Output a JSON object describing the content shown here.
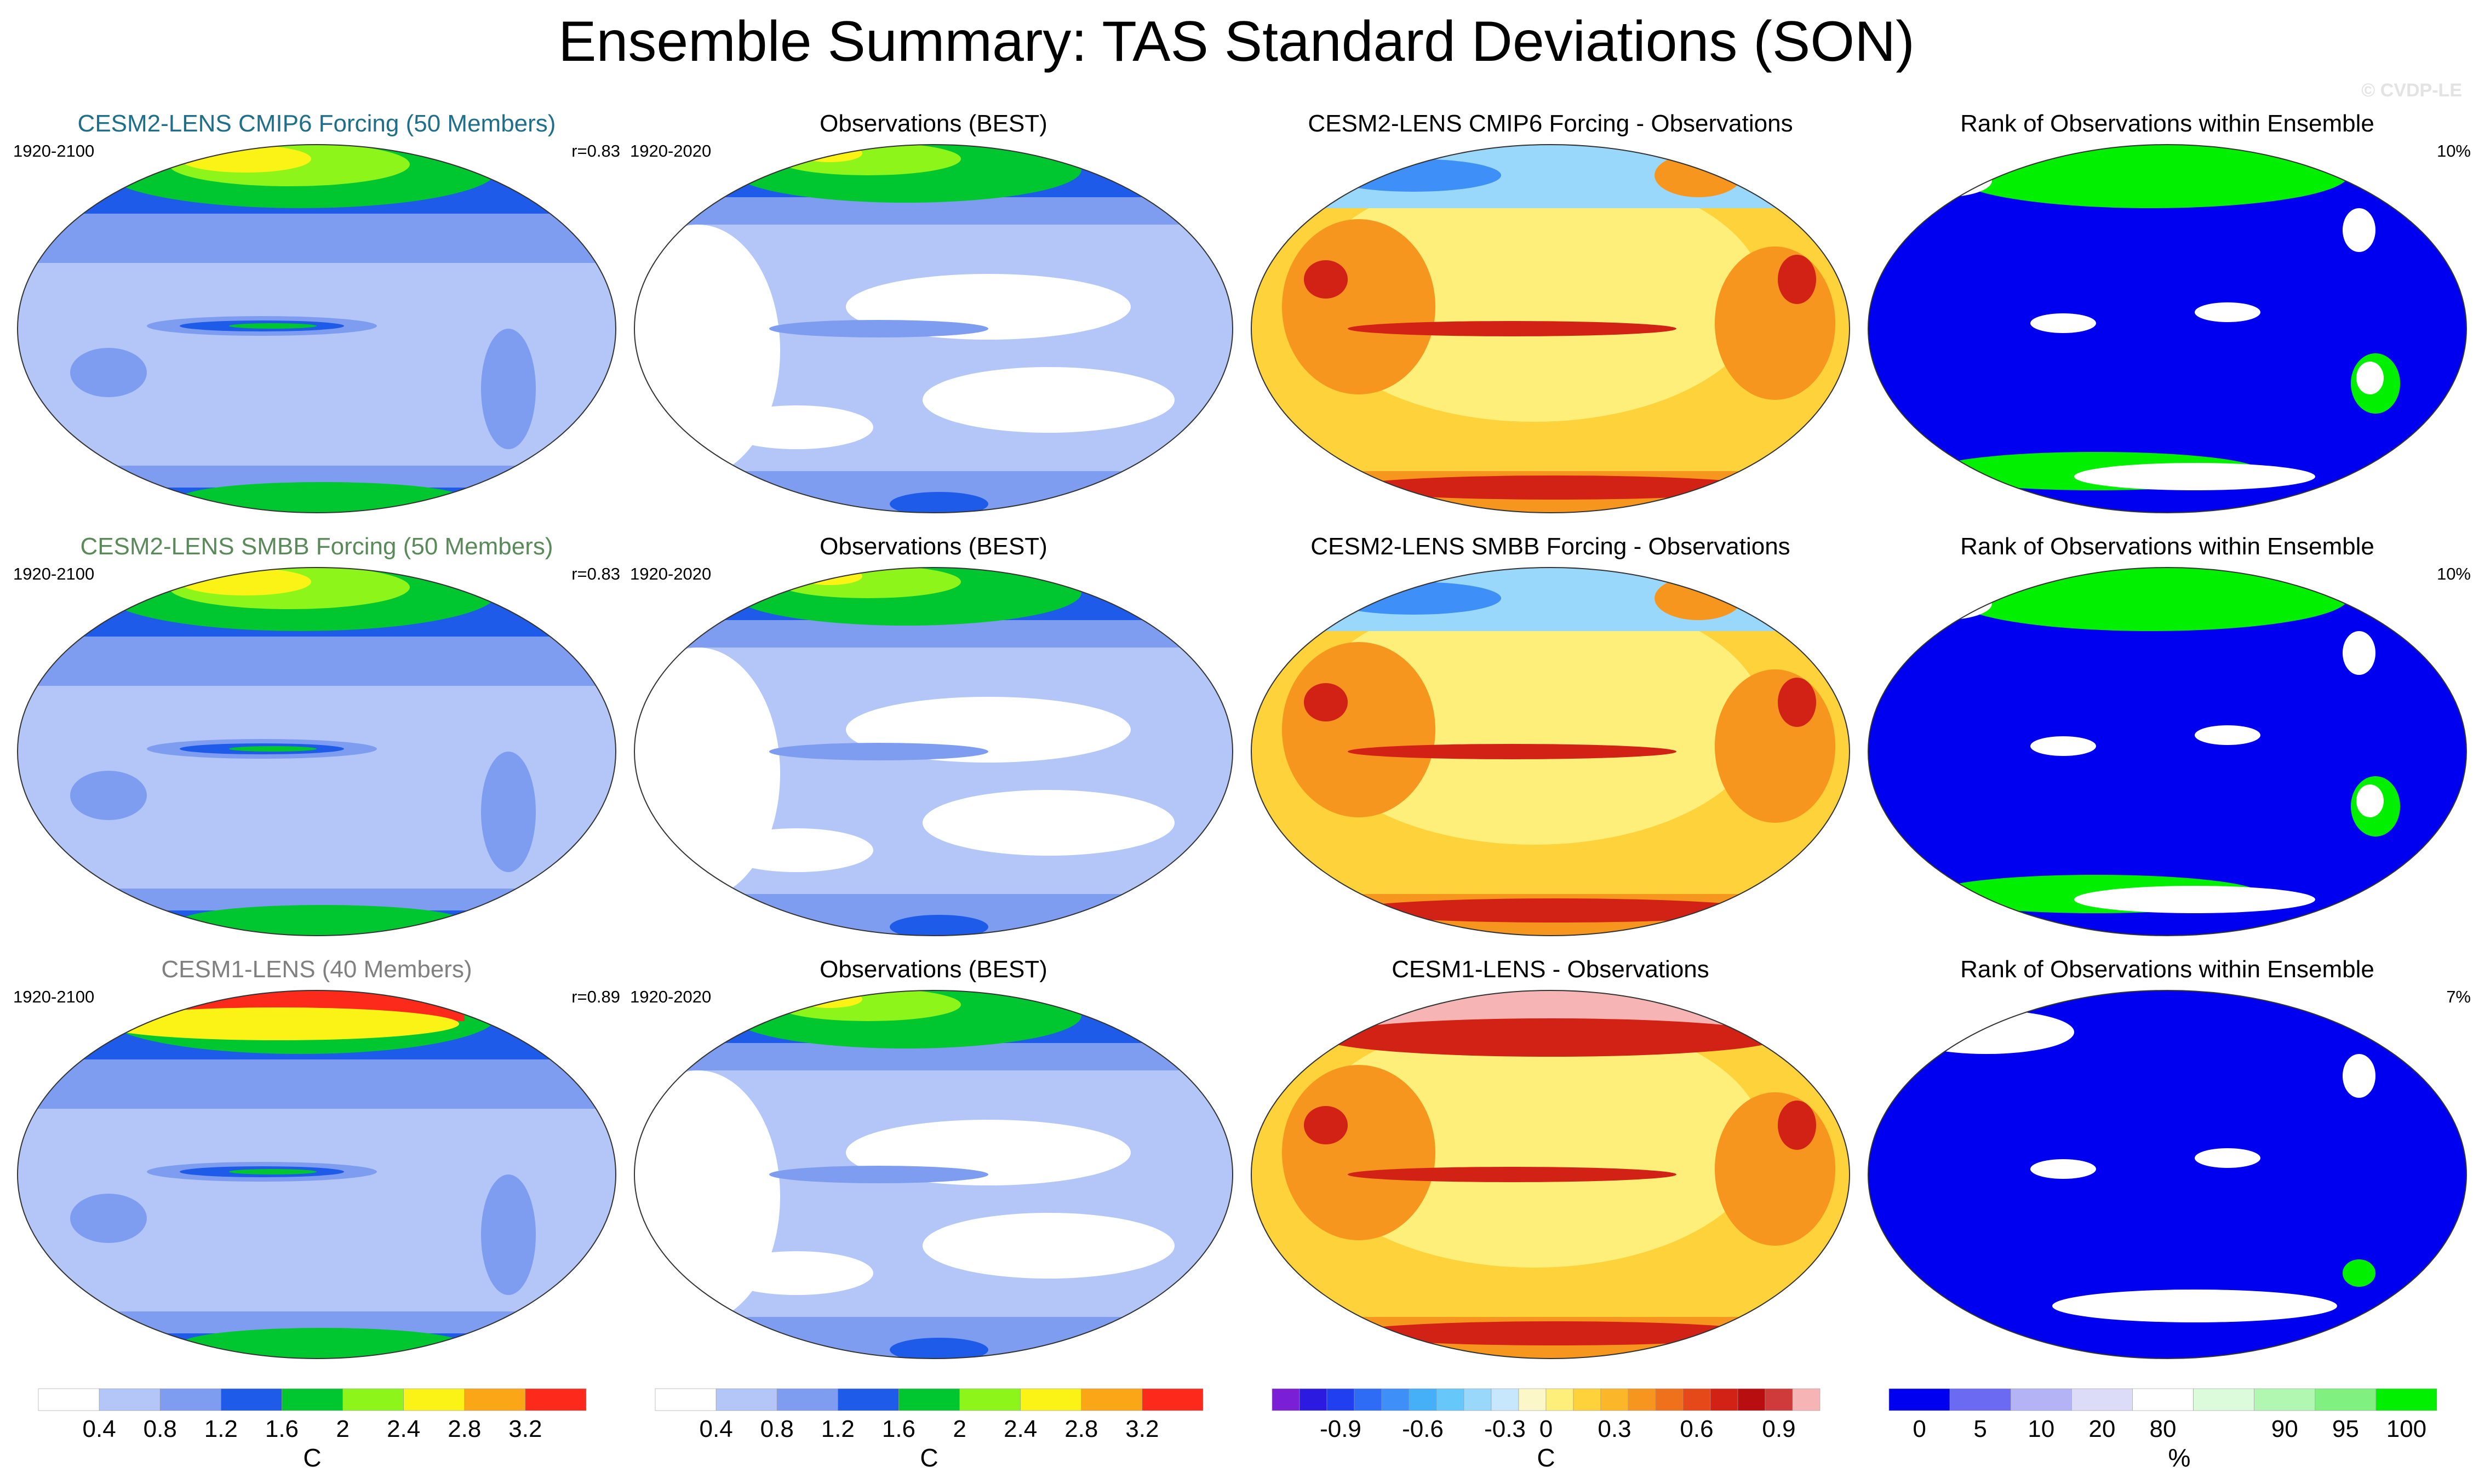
{
  "page_title": "Ensemble Summary: TAS Standard Deviations (SON)",
  "credit": "© CVDP-LE",
  "rows": [
    {
      "model": {
        "title": "CESM2-LENS CMIP6 Forcing (50 Members)",
        "title_color": "#1f6f8b",
        "period": "1920-2100",
        "corr": "r=0.83",
        "variant": 0
      },
      "obs": {
        "title": "Observations (BEST)",
        "period": "1920-2020"
      },
      "diff": {
        "title": "CESM2-LENS CMIP6 Forcing - Observations"
      },
      "rank": {
        "title": "Rank of Observations within Ensemble",
        "percent": "10%"
      }
    },
    {
      "model": {
        "title": "CESM2-LENS SMBB Forcing (50 Members)",
        "title_color": "#5a8a5a",
        "period": "1920-2100",
        "corr": "r=0.83",
        "variant": 1
      },
      "obs": {
        "title": "Observations (BEST)",
        "period": "1920-2020"
      },
      "diff": {
        "title": "CESM2-LENS SMBB Forcing - Observations"
      },
      "rank": {
        "title": "Rank of Observations within Ensemble",
        "percent": "10%"
      }
    },
    {
      "model": {
        "title": "CESM1-LENS (40 Members)",
        "title_color": "#808080",
        "period": "1920-2100",
        "corr": "r=0.89",
        "variant": 2
      },
      "obs": {
        "title": "Observations (BEST)",
        "period": "1920-2020"
      },
      "diff": {
        "title": "CESM1-LENS - Observations"
      },
      "rank": {
        "title": "Rank of Observations within Ensemble",
        "percent": "7%"
      }
    }
  ],
  "chart_data": [
    {
      "type": "colorbar",
      "name": "std-dev-model",
      "unit": "C",
      "levels": [
        0.4,
        0.8,
        1.2,
        1.6,
        2,
        2.4,
        2.8,
        3.2
      ],
      "tick_labels": [
        "0.4",
        "0.8",
        "1.2",
        "1.6",
        "2",
        "2.4",
        "2.8",
        "3.2"
      ],
      "colors": [
        "#ffffff",
        "#b3c6f7",
        "#7f9df0",
        "#1e5be8",
        "#00c62f",
        "#8ef51a",
        "#fbf316",
        "#fba617",
        "#fb2a1b"
      ]
    },
    {
      "type": "colorbar",
      "name": "std-dev-obs",
      "unit": "C",
      "levels": [
        0.4,
        0.8,
        1.2,
        1.6,
        2,
        2.4,
        2.8,
        3.2
      ],
      "tick_labels": [
        "0.4",
        "0.8",
        "1.2",
        "1.6",
        "2",
        "2.4",
        "2.8",
        "3.2"
      ],
      "colors": [
        "#ffffff",
        "#b3c6f7",
        "#7f9df0",
        "#1e5be8",
        "#00c62f",
        "#8ef51a",
        "#fbf316",
        "#fba617",
        "#fb2a1b"
      ]
    },
    {
      "type": "colorbar",
      "name": "difference",
      "unit": "C",
      "levels": [
        -0.9,
        -0.6,
        -0.3,
        0,
        0.3,
        0.6,
        0.9
      ],
      "tick_labels": [
        "-0.9",
        "-0.6",
        "-0.3",
        "0",
        "0.3",
        "0.6",
        "0.9"
      ],
      "colors": [
        "#7a1fd6",
        "#2d1ae0",
        "#1f3ff0",
        "#2f6cf5",
        "#3e8ff7",
        "#45b0f8",
        "#66c8fa",
        "#9ad8fb",
        "#c6e7fc",
        "#fbf7c8",
        "#fdef7a",
        "#fdd23a",
        "#fbb62a",
        "#f7961f",
        "#f0711c",
        "#e54919",
        "#d22215",
        "#b80e10",
        "#cf3b3b",
        "#f7b4b4"
      ]
    },
    {
      "type": "colorbar",
      "name": "rank",
      "unit": "%",
      "tick_labels": [
        "0",
        "5",
        "10",
        "20",
        "80",
        "90",
        "95",
        "100"
      ],
      "colors": [
        "#0000f0",
        "#6a6af2",
        "#b3b3f6",
        "#dcdcf8",
        "#ffffff",
        "#dbfbdb",
        "#b1f7b1",
        "#80f080",
        "#00f000"
      ]
    }
  ],
  "row_colorbars": [
    0,
    1,
    2,
    3
  ]
}
